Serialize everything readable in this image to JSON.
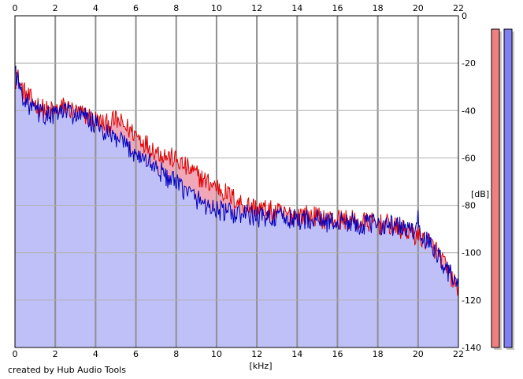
{
  "chart_data": {
    "type": "area",
    "title": "",
    "xlabel": "[kHz]",
    "ylabel": "[dB]",
    "xlim": [
      0,
      22
    ],
    "ylim": [
      -140,
      0
    ],
    "x_ticks": [
      "0",
      "2",
      "4",
      "6",
      "8",
      "10",
      "12",
      "14",
      "16",
      "18",
      "20",
      "22"
    ],
    "y_ticks": [
      "0",
      "-20",
      "-40",
      "-60",
      "-80",
      "-100",
      "-120",
      "-140"
    ],
    "grid": true,
    "x_axis_position": "top and bottom",
    "y_axis_position": "right",
    "series": [
      {
        "color": "#e00000",
        "fill": "#f0a8b8",
        "x": [
          0,
          0.1,
          0.3,
          0.6,
          1,
          1.5,
          2,
          2.5,
          3,
          3.5,
          4,
          4.5,
          5,
          5.5,
          6,
          6.5,
          7,
          7.5,
          8,
          8.5,
          9,
          9.5,
          10,
          10.5,
          11,
          11.5,
          12,
          12.5,
          13,
          13.5,
          14,
          14.5,
          15,
          15.5,
          16,
          16.5,
          17,
          17.5,
          18,
          18.5,
          19,
          19.5,
          20,
          20.5,
          21,
          21.5,
          22
        ],
        "values": [
          -22,
          -25,
          -30,
          -34,
          -37,
          -40,
          -40,
          -38,
          -41,
          -42,
          -44,
          -46,
          -44,
          -47,
          -50,
          -54,
          -57,
          -59,
          -61,
          -64,
          -67,
          -70,
          -72,
          -75,
          -78,
          -80,
          -81,
          -82,
          -83,
          -84,
          -84,
          -84,
          -85,
          -86,
          -86,
          -86,
          -87,
          -87,
          -88,
          -88,
          -90,
          -91,
          -93,
          -95,
          -100,
          -108,
          -116
        ]
      },
      {
        "color": "#0000c0",
        "fill": "#c0c0f8",
        "x": [
          0,
          0.1,
          0.3,
          0.6,
          1,
          1.5,
          2,
          2.5,
          3,
          3.5,
          4,
          4.5,
          5,
          5.5,
          6,
          6.5,
          7,
          7.5,
          8,
          8.5,
          9,
          9.5,
          10,
          10.5,
          11,
          11.5,
          12,
          12.5,
          13,
          13.5,
          14,
          14.5,
          15,
          15.5,
          16,
          16.5,
          17,
          17.5,
          18,
          18.5,
          19,
          19.5,
          20,
          20.5,
          21,
          21.5,
          22
        ],
        "values": [
          -22,
          -26,
          -32,
          -37,
          -40,
          -42,
          -42,
          -40,
          -42,
          -43,
          -46,
          -50,
          -52,
          -55,
          -58,
          -61,
          -64,
          -68,
          -71,
          -74,
          -77,
          -80,
          -82,
          -83,
          -84,
          -84,
          -85,
          -85,
          -85,
          -86,
          -86,
          -86,
          -86,
          -87,
          -87,
          -87,
          -88,
          -88,
          -88,
          -88,
          -89,
          -90,
          -92,
          -96,
          -101,
          -108,
          -114
        ]
      }
    ]
  },
  "level_meters": [
    {
      "color": "#f08080",
      "level_fraction": 1.0
    },
    {
      "color": "#8080f0",
      "level_fraction": 1.0
    }
  ],
  "footer": {
    "credit": "created by Hub Audio Tools"
  }
}
